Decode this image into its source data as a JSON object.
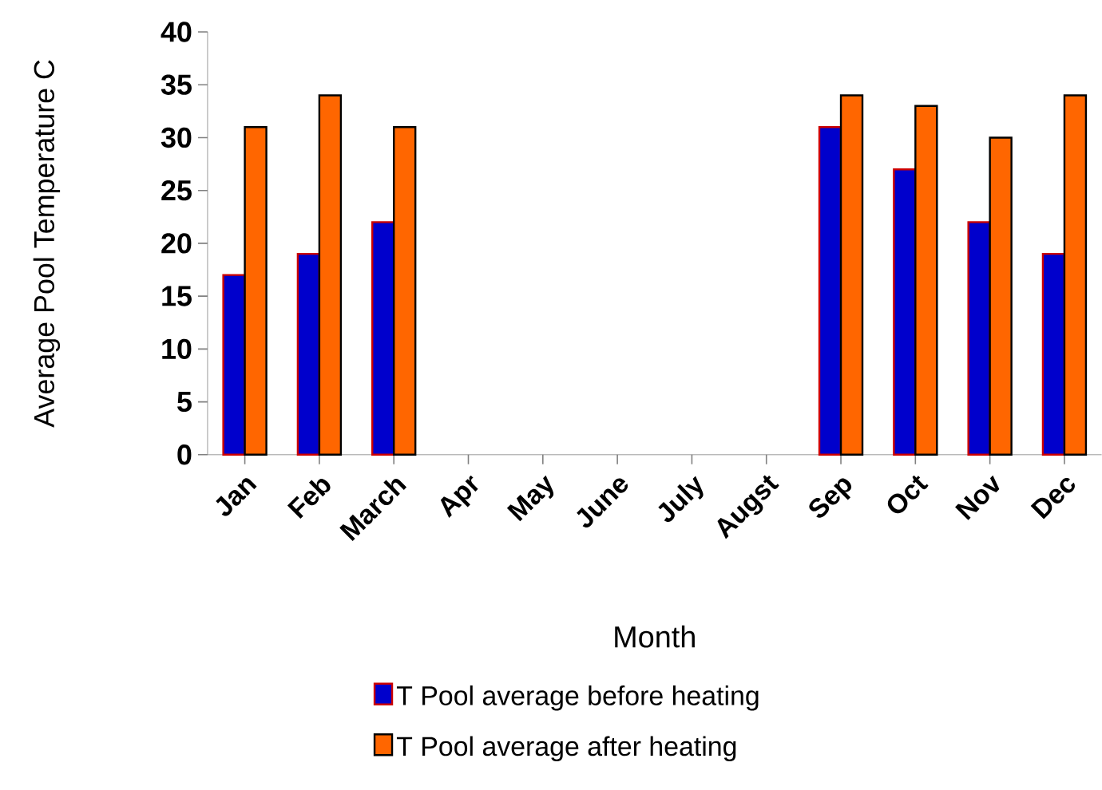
{
  "chart_data": {
    "type": "bar",
    "xlabel": "Month",
    "ylabel": "Average Pool Temperature C",
    "categories": [
      "Jan",
      "Feb",
      "March",
      "Apr",
      "May",
      "June",
      "July",
      "Augst",
      "Sep",
      "Oct",
      "Nov",
      "Dec"
    ],
    "series": [
      {
        "name": "T Pool average before heating",
        "color": "#0000cc",
        "values": [
          17,
          19,
          22,
          null,
          null,
          null,
          null,
          null,
          31,
          27,
          22,
          19
        ]
      },
      {
        "name": "T Pool average after heating",
        "color": "#ff6600",
        "values": [
          31,
          34,
          31,
          null,
          null,
          null,
          null,
          null,
          34,
          33,
          30,
          34
        ]
      }
    ],
    "ylim": [
      0,
      40
    ],
    "yticks": [
      0,
      5,
      10,
      15,
      20,
      25,
      30,
      35,
      40
    ],
    "grid": false,
    "legend": "bottom"
  }
}
